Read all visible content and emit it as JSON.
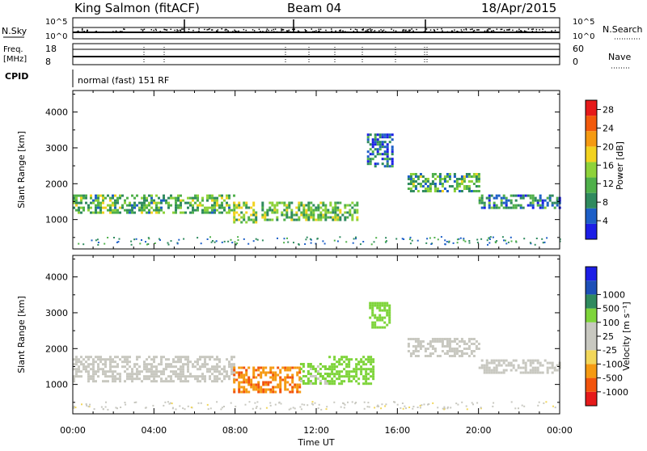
{
  "header": {
    "station": "King Salmon (fitACF)",
    "beam": "Beam 04",
    "date": "18/Apr/2015"
  },
  "top_panels": {
    "nsky_label": "N.Sky",
    "nsearch_label": "N.Search",
    "noise_ticks": [
      "10^5",
      "10^0"
    ],
    "freq_label_1": "Freq.",
    "freq_label_2": "[MHz]",
    "freq_ticks": [
      "18",
      "8"
    ],
    "nave_label": "Nave",
    "nave_ticks": [
      "60",
      "0"
    ],
    "cpid_label": "CPID",
    "cpid_text": "normal (fast) 151 RF"
  },
  "colors": {
    "power_scale": [
      "#1c1ee6",
      "#1d5fc7",
      "#2f8a5e",
      "#4fb04a",
      "#8ed23a",
      "#f2d21f",
      "#f59a12",
      "#f25a0c",
      "#e61a1a"
    ],
    "velocity_scale": [
      "#e61a1a",
      "#f2540c",
      "#f59a12",
      "#f2d75a",
      "#c8c8c0",
      "#c8c8c0",
      "#7ed43a",
      "#2f8a5e",
      "#1d4fb8",
      "#1c1ee6"
    ]
  },
  "chart_data": [
    {
      "type": "heatmap",
      "quantity": "power",
      "ylabel": "Slant Range [km]",
      "yticks": [
        "1000",
        "2000",
        "3000",
        "4000"
      ],
      "ylim": [
        180,
        4600
      ],
      "xlim": [
        0,
        24
      ],
      "colorbar_label": "Power [dB]",
      "colorbar_ticks": [
        "4",
        "8",
        "12",
        "16",
        "20",
        "24",
        "28"
      ],
      "colorbar_range": [
        0,
        30
      ],
      "bands": [
        {
          "t": [
            0,
            7.9
          ],
          "range": [
            1200,
            1700
          ],
          "value": 12
        },
        {
          "t": [
            7.9,
            9.0
          ],
          "range": [
            900,
            1500
          ],
          "value": 14
        },
        {
          "t": [
            9.3,
            14.0
          ],
          "range": [
            1000,
            1500
          ],
          "value": 13
        },
        {
          "t": [
            14.5,
            15.8
          ],
          "range": [
            2500,
            3400
          ],
          "value": 6
        },
        {
          "t": [
            16.5,
            20.0
          ],
          "range": [
            1800,
            2300
          ],
          "value": 11
        },
        {
          "t": [
            20.0,
            24.0
          ],
          "range": [
            1300,
            1700
          ],
          "value": 8
        }
      ]
    },
    {
      "type": "heatmap",
      "quantity": "velocity",
      "ylabel": "Slant Range [km]",
      "yticks": [
        "1000",
        "2000",
        "3000",
        "4000"
      ],
      "ylim": [
        180,
        4600
      ],
      "xlim": [
        0,
        24
      ],
      "xlabel": "Time UT",
      "xticks": [
        "00:00",
        "04:00",
        "08:00",
        "12:00",
        "16:00",
        "20:00",
        "00:00"
      ],
      "colorbar_label": "Velocity [m s⁻¹]",
      "colorbar_ticks": [
        "-1000",
        "-500",
        "-100",
        "-25",
        "25",
        "100",
        "500",
        "1000"
      ],
      "bands": [
        {
          "t": [
            0,
            7.9
          ],
          "range": [
            1100,
            1800
          ],
          "value": 0
        },
        {
          "t": [
            7.9,
            11.2
          ],
          "range": [
            800,
            1500
          ],
          "value": -300
        },
        {
          "t": [
            11.2,
            12.6
          ],
          "range": [
            1000,
            1600
          ],
          "value": 60
        },
        {
          "t": [
            12.6,
            14.8
          ],
          "range": [
            1000,
            1800
          ],
          "value": 200
        },
        {
          "t": [
            14.6,
            15.6
          ],
          "range": [
            2600,
            3300
          ],
          "value": 150
        },
        {
          "t": [
            16.5,
            20.0
          ],
          "range": [
            1800,
            2300
          ],
          "value": 0
        },
        {
          "t": [
            20.0,
            24.0
          ],
          "range": [
            1300,
            1700
          ],
          "value": 0
        }
      ]
    }
  ]
}
